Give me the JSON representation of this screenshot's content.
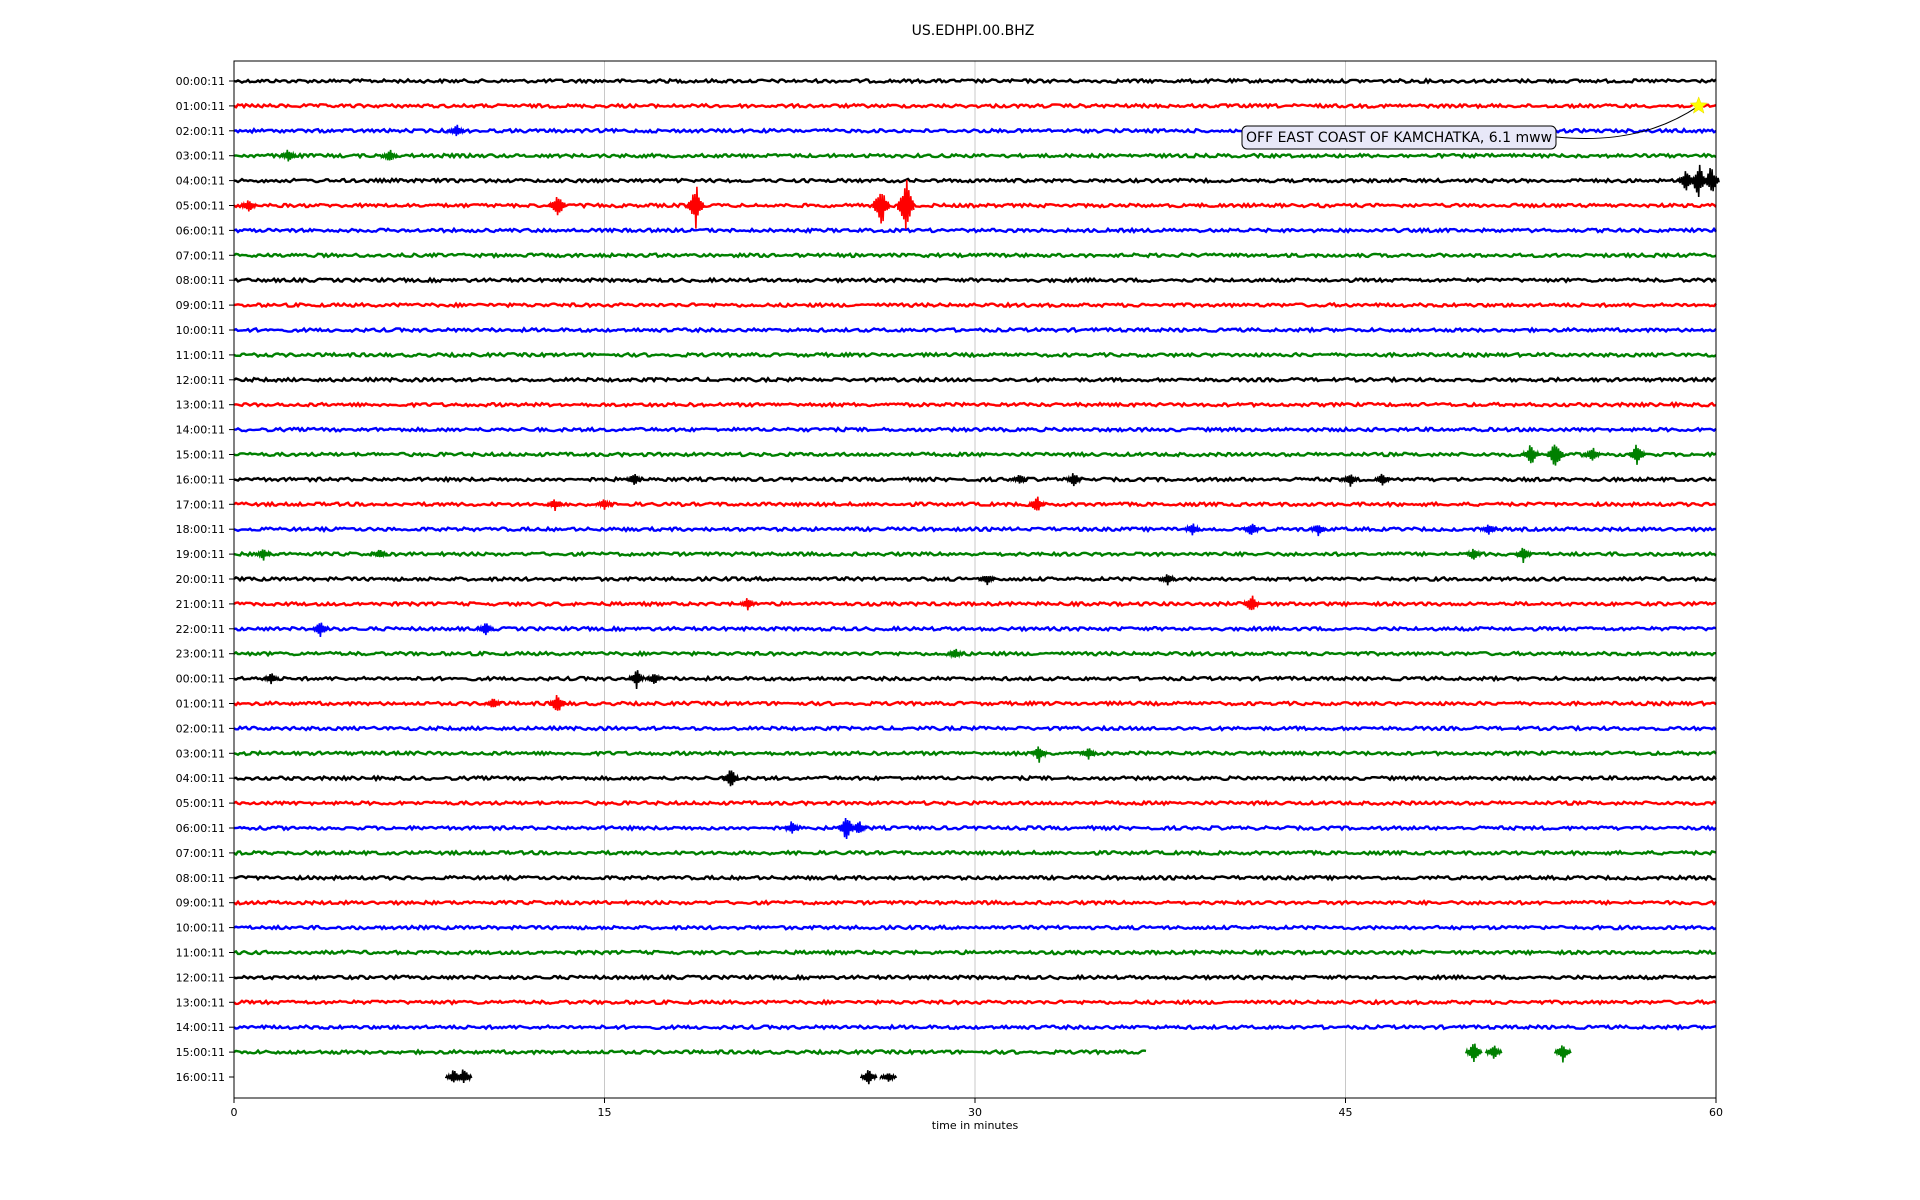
{
  "chart_data": {
    "type": "line",
    "title": "US.EDHPI.00.BHZ",
    "xlabel": "time in minutes",
    "ylabel": "",
    "xlim": [
      0,
      60
    ],
    "x_ticks": [
      "0",
      "15",
      "30",
      "45",
      "60"
    ],
    "x_tick_values": [
      0,
      15,
      30,
      45,
      60
    ],
    "grid": "vertical",
    "row_labels": [
      "00:00:11",
      "01:00:11",
      "02:00:11",
      "03:00:11",
      "04:00:11",
      "05:00:11",
      "06:00:11",
      "07:00:11",
      "08:00:11",
      "09:00:11",
      "10:00:11",
      "11:00:11",
      "12:00:11",
      "13:00:11",
      "14:00:11",
      "15:00:11",
      "16:00:11",
      "17:00:11",
      "18:00:11",
      "19:00:11",
      "20:00:11",
      "21:00:11",
      "22:00:11",
      "23:00:11",
      "00:00:11",
      "01:00:11",
      "02:00:11",
      "03:00:11",
      "04:00:11",
      "05:00:11",
      "06:00:11",
      "07:00:11",
      "08:00:11",
      "09:00:11",
      "10:00:11",
      "11:00:11",
      "12:00:11",
      "13:00:11",
      "14:00:11",
      "15:00:11",
      "16:00:11"
    ],
    "trace_colors": [
      "#000000",
      "#ff0000",
      "#0000ff",
      "#008000"
    ],
    "last_trace_end_minutes": 37,
    "event_bursts": [
      {
        "row": 2,
        "minute": 9,
        "amp": 7
      },
      {
        "row": 3,
        "minute": 2.2,
        "amp": 7
      },
      {
        "row": 3,
        "minute": 6.3,
        "amp": 7
      },
      {
        "row": 4,
        "minute": 58.8,
        "amp": 12
      },
      {
        "row": 4,
        "minute": 59.3,
        "amp": 20
      },
      {
        "row": 4,
        "minute": 59.8,
        "amp": 16
      },
      {
        "row": 5,
        "minute": 0.6,
        "amp": 8
      },
      {
        "row": 5,
        "minute": 13.1,
        "amp": 14
      },
      {
        "row": 5,
        "minute": 18.7,
        "amp": 22
      },
      {
        "row": 5,
        "minute": 26.2,
        "amp": 24
      },
      {
        "row": 5,
        "minute": 27.2,
        "amp": 30
      },
      {
        "row": 15,
        "minute": 52.5,
        "amp": 12
      },
      {
        "row": 15,
        "minute": 53.5,
        "amp": 16
      },
      {
        "row": 15,
        "minute": 55,
        "amp": 8
      },
      {
        "row": 15,
        "minute": 56.8,
        "amp": 12
      },
      {
        "row": 16,
        "minute": 16.2,
        "amp": 7
      },
      {
        "row": 16,
        "minute": 31.8,
        "amp": 6
      },
      {
        "row": 16,
        "minute": 34,
        "amp": 8
      },
      {
        "row": 16,
        "minute": 45.2,
        "amp": 7
      },
      {
        "row": 16,
        "minute": 46.5,
        "amp": 7
      },
      {
        "row": 17,
        "minute": 13,
        "amp": 6
      },
      {
        "row": 17,
        "minute": 15,
        "amp": 6
      },
      {
        "row": 17,
        "minute": 32.5,
        "amp": 10
      },
      {
        "row": 18,
        "minute": 38.8,
        "amp": 7
      },
      {
        "row": 18,
        "minute": 41.2,
        "amp": 8
      },
      {
        "row": 18,
        "minute": 43.9,
        "amp": 7
      },
      {
        "row": 18,
        "minute": 50.8,
        "amp": 6
      },
      {
        "row": 19,
        "minute": 1.2,
        "amp": 6
      },
      {
        "row": 19,
        "minute": 5.9,
        "amp": 5
      },
      {
        "row": 19,
        "minute": 50.2,
        "amp": 7
      },
      {
        "row": 19,
        "minute": 52.2,
        "amp": 8
      },
      {
        "row": 20,
        "minute": 30.5,
        "amp": 6
      },
      {
        "row": 20,
        "minute": 37.8,
        "amp": 6
      },
      {
        "row": 21,
        "minute": 20.8,
        "amp": 7
      },
      {
        "row": 21,
        "minute": 41.2,
        "amp": 10
      },
      {
        "row": 22,
        "minute": 3.5,
        "amp": 9
      },
      {
        "row": 22,
        "minute": 10.2,
        "amp": 7
      },
      {
        "row": 23,
        "minute": 29.2,
        "amp": 6
      },
      {
        "row": 24,
        "minute": 1.5,
        "amp": 6
      },
      {
        "row": 24,
        "minute": 16.3,
        "amp": 10
      },
      {
        "row": 24,
        "minute": 17,
        "amp": 7
      },
      {
        "row": 25,
        "minute": 10.5,
        "amp": 6
      },
      {
        "row": 25,
        "minute": 13.1,
        "amp": 12
      },
      {
        "row": 27,
        "minute": 32.6,
        "amp": 9
      },
      {
        "row": 27,
        "minute": 34.6,
        "amp": 7
      },
      {
        "row": 28,
        "minute": 20.1,
        "amp": 12
      },
      {
        "row": 30,
        "minute": 22.6,
        "amp": 8
      },
      {
        "row": 30,
        "minute": 24.8,
        "amp": 14
      },
      {
        "row": 30,
        "minute": 25.3,
        "amp": 8
      },
      {
        "row": 39,
        "minute": 50.2,
        "amp": 11
      },
      {
        "row": 39,
        "minute": 51,
        "amp": 8
      },
      {
        "row": 39,
        "minute": 53.8,
        "amp": 10
      },
      {
        "row": 40,
        "minute": 8.9,
        "amp": 8
      },
      {
        "row": 40,
        "minute": 9.3,
        "amp": 9
      },
      {
        "row": 40,
        "minute": 25.7,
        "amp": 8
      },
      {
        "row": 40,
        "minute": 26.5,
        "amp": 6
      }
    ],
    "annotation": {
      "text": "OFF EAST COAST OF KAMCHATKA, 6.1 mww",
      "row": 1,
      "minute": 59.3,
      "marker": "star",
      "marker_color": "#ffff00"
    }
  }
}
